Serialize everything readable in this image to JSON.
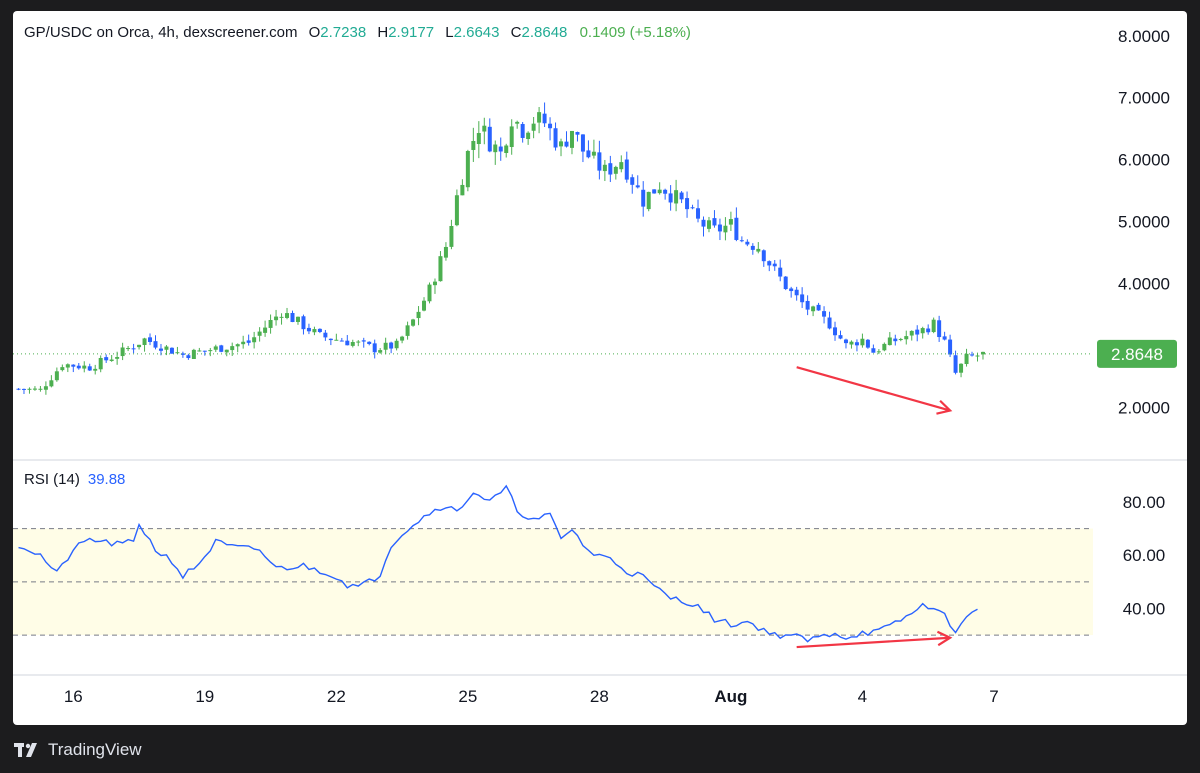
{
  "header": {
    "symbol": "GP/USDC on Orca, 4h, dexscreener.com",
    "o_label": "O",
    "o_value": "2.7238",
    "h_label": "H",
    "h_value": "2.9177",
    "l_label": "L",
    "l_value": "2.6643",
    "c_label": "C",
    "c_value": "2.8648",
    "change": "0.1409 (+5.18%)"
  },
  "rsi_header": {
    "label": "RSI (14)",
    "value": "39.88"
  },
  "footer": {
    "brand": "TradingView"
  },
  "colors": {
    "up": "#4caf50",
    "down": "#2962ff",
    "rsi": "#2962ff",
    "arrow": "#f23645",
    "band": "#fffde7"
  },
  "chart_data": [
    {
      "type": "candlestick",
      "title": "GP/USDC on Orca, 4h",
      "ylim": [
        1.2,
        8.4
      ],
      "yticks": [
        "2.0000",
        "3.0000",
        "4.0000",
        "5.0000",
        "6.0000",
        "7.0000",
        "8.0000"
      ],
      "last_price": "2.8648",
      "price_path": [
        [
          0,
          2.3
        ],
        [
          4,
          2.28
        ],
        [
          8,
          2.7
        ],
        [
          13,
          2.65
        ],
        [
          18,
          2.85
        ],
        [
          23,
          3.1
        ],
        [
          30,
          2.85
        ],
        [
          36,
          2.95
        ],
        [
          42,
          3.05
        ],
        [
          48,
          3.55
        ],
        [
          55,
          3.15
        ],
        [
          61,
          3.05
        ],
        [
          65,
          2.95
        ],
        [
          69,
          3.0
        ],
        [
          72,
          3.4
        ],
        [
          75,
          3.9
        ],
        [
          78,
          4.6
        ],
        [
          80,
          5.4
        ],
        [
          82,
          6.1
        ],
        [
          84,
          6.55
        ],
        [
          86,
          6.3
        ],
        [
          88,
          6.1
        ],
        [
          90,
          6.7
        ],
        [
          92,
          6.5
        ],
        [
          94,
          6.65
        ],
        [
          96,
          6.6
        ],
        [
          99,
          6.2
        ],
        [
          101,
          6.5
        ],
        [
          103,
          6.15
        ],
        [
          107,
          5.8
        ],
        [
          110,
          6.0
        ],
        [
          114,
          5.35
        ],
        [
          117,
          5.6
        ],
        [
          121,
          5.3
        ],
        [
          124,
          5.0
        ],
        [
          127,
          4.85
        ],
        [
          130,
          4.95
        ],
        [
          132,
          4.7
        ],
        [
          135,
          4.6
        ],
        [
          138,
          4.2
        ],
        [
          141,
          3.85
        ],
        [
          144,
          3.6
        ],
        [
          148,
          3.35
        ],
        [
          151,
          3.0
        ],
        [
          154,
          3.1
        ],
        [
          156,
          2.9
        ],
        [
          159,
          3.05
        ],
        [
          162,
          3.15
        ],
        [
          165,
          3.25
        ],
        [
          167,
          3.35
        ],
        [
          169,
          3.05
        ],
        [
          171,
          2.55
        ],
        [
          173,
          2.8
        ],
        [
          176,
          2.86
        ]
      ],
      "annotation": "lower low"
    },
    {
      "type": "line",
      "title": "RSI (14)",
      "ylim": [
        15,
        95
      ],
      "yticks": [
        "40.00",
        "60.00",
        "80.00"
      ],
      "bands": [
        30,
        50,
        70
      ],
      "path": [
        [
          0,
          64
        ],
        [
          4,
          60
        ],
        [
          7,
          53
        ],
        [
          10,
          62
        ],
        [
          13,
          66
        ],
        [
          18,
          64
        ],
        [
          21,
          65
        ],
        [
          22,
          72
        ],
        [
          25,
          62
        ],
        [
          28,
          58
        ],
        [
          30,
          52
        ],
        [
          33,
          57
        ],
        [
          36,
          65
        ],
        [
          39,
          63
        ],
        [
          44,
          62
        ],
        [
          47,
          55
        ],
        [
          52,
          56
        ],
        [
          57,
          53
        ],
        [
          60,
          49
        ],
        [
          62,
          48
        ],
        [
          64,
          50
        ],
        [
          66,
          53
        ],
        [
          68,
          64
        ],
        [
          71,
          70
        ],
        [
          75,
          76
        ],
        [
          78,
          79
        ],
        [
          80,
          76
        ],
        [
          83,
          84
        ],
        [
          86,
          80
        ],
        [
          89,
          85
        ],
        [
          91,
          77
        ],
        [
          94,
          73
        ],
        [
          97,
          75
        ],
        [
          99,
          66
        ],
        [
          101,
          70
        ],
        [
          103,
          64
        ],
        [
          105,
          60
        ],
        [
          108,
          59
        ],
        [
          111,
          54
        ],
        [
          114,
          52
        ],
        [
          116,
          48
        ],
        [
          119,
          44
        ],
        [
          123,
          42
        ],
        [
          127,
          36
        ],
        [
          130,
          34
        ],
        [
          133,
          35
        ],
        [
          136,
          32
        ],
        [
          138,
          30
        ],
        [
          141,
          30
        ],
        [
          144,
          28
        ],
        [
          146,
          29
        ],
        [
          149,
          31
        ],
        [
          151,
          29
        ],
        [
          154,
          31
        ],
        [
          156,
          31
        ],
        [
          159,
          33
        ],
        [
          162,
          37
        ],
        [
          164,
          39
        ],
        [
          165,
          42
        ],
        [
          167,
          40
        ],
        [
          169,
          37
        ],
        [
          171,
          32
        ],
        [
          173,
          36
        ],
        [
          175,
          40
        ]
      ],
      "current": "39.88",
      "annotation": "higher low"
    }
  ],
  "x_axis": {
    "ticks": [
      {
        "label": "16",
        "i": 10,
        "bold": false
      },
      {
        "label": "19",
        "i": 34,
        "bold": false
      },
      {
        "label": "22",
        "i": 58,
        "bold": false
      },
      {
        "label": "25",
        "i": 82,
        "bold": false
      },
      {
        "label": "28",
        "i": 106,
        "bold": false
      },
      {
        "label": "Aug",
        "i": 130,
        "bold": true
      },
      {
        "label": "4",
        "i": 154,
        "bold": false
      },
      {
        "label": "7",
        "i": 178,
        "bold": false
      }
    ]
  }
}
